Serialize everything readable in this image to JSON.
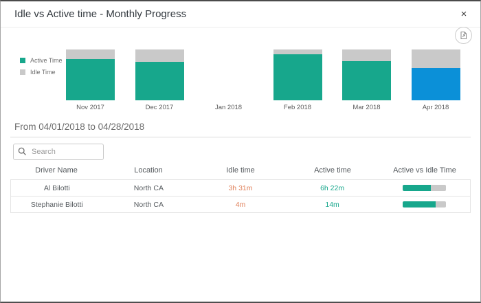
{
  "modal": {
    "title": "Idle vs Active time - Monthly Progress",
    "close_glyph": "×"
  },
  "icons": {
    "close": "close-icon",
    "export": "export-report-icon",
    "search": "search-icon"
  },
  "colors": {
    "active_teal": "#17a78c",
    "idle_gray": "#c9c9c9",
    "selected_blue": "#0b90d8",
    "idle_text_orange": "#e0805a"
  },
  "chart_data": {
    "type": "bar",
    "stacked": true,
    "title": "Idle vs Active time - Monthly Progress",
    "categories": [
      "Nov 2017",
      "Dec 2017",
      "Jan 2018",
      "Feb 2018",
      "Mar 2018",
      "Apr 2018"
    ],
    "series": [
      {
        "name": "Active Time",
        "color": "#17a78c",
        "values": [
          81,
          76,
          null,
          90,
          77,
          64
        ]
      },
      {
        "name": "Idle Time",
        "color": "#c9c9c9",
        "values": [
          19,
          24,
          null,
          10,
          23,
          36
        ]
      }
    ],
    "unit": "percent of month total",
    "highlight_index": 5,
    "highlight_color": "#0b90d8",
    "legend_position": "left",
    "grid": false,
    "ylim": [
      0,
      100
    ]
  },
  "period": {
    "label": "From 04/01/2018 to 04/28/2018"
  },
  "search": {
    "placeholder": "Search"
  },
  "table": {
    "columns": [
      "Driver Name",
      "Location",
      "Idle time",
      "Active time",
      "Active vs Idle Time"
    ],
    "rows": [
      {
        "driver": "Al Bilotti",
        "location": "North CA",
        "idle": "3h 31m",
        "active": "6h 22m",
        "active_pct": 65
      },
      {
        "driver": "Stephanie Bilotti",
        "location": "North CA",
        "idle": "4m",
        "active": "14m",
        "active_pct": 77
      }
    ]
  }
}
